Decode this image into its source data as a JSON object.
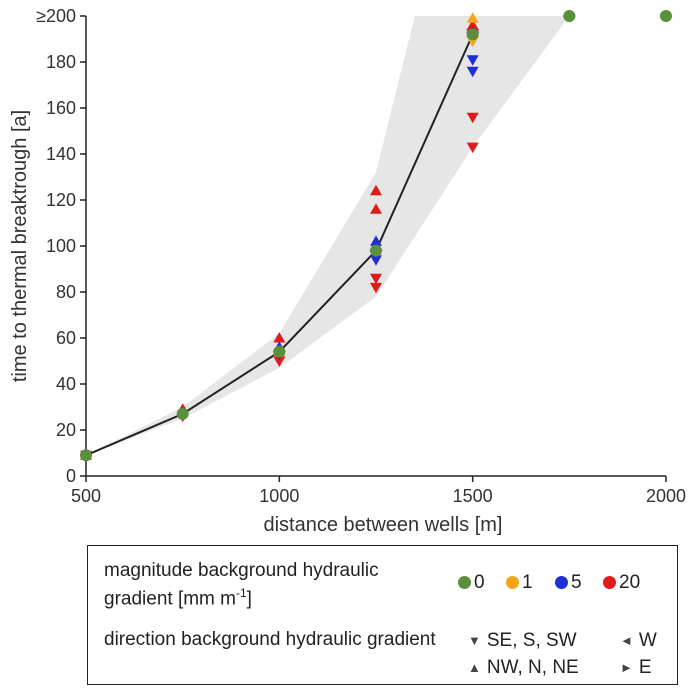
{
  "chart_data": {
    "type": "scatter",
    "xlabel": "distance between wells [m]",
    "ylabel": "time to thermal breaktrough [a]",
    "xlim": [
      500,
      2000
    ],
    "ylim": [
      0,
      200
    ],
    "x_ticks": [
      500,
      1000,
      1500,
      2000
    ],
    "x_tick_labels": [
      "500",
      "1000",
      "1500",
      "2000"
    ],
    "y_ticks": [
      0,
      20,
      40,
      60,
      80,
      100,
      120,
      140,
      160,
      180,
      200
    ],
    "y_tick_labels": [
      "0",
      "20",
      "40",
      "60",
      "80",
      "100",
      "120",
      "140",
      "160",
      "180",
      "≥200"
    ],
    "grid": false,
    "envelope": {
      "x": [
        500,
        750,
        1000,
        1250,
        1500,
        1750,
        2000
      ],
      "lower": [
        9,
        25,
        47,
        78,
        143,
        200,
        200
      ],
      "upper": [
        9,
        30,
        62,
        132,
        200,
        200,
        200
      ],
      "upper_cap_x": 1350,
      "color": "#e6e6e6"
    },
    "line": {
      "x": [
        500,
        750,
        1000,
        1250,
        1500
      ],
      "y": [
        9,
        27,
        54,
        98,
        192
      ],
      "color": "#222222"
    },
    "colors": {
      "0": "#5a8f3c",
      "1": "#f4a51c",
      "5": "#1f2fd6",
      "20": "#e01b1b"
    },
    "series": [
      {
        "magnitude": "20",
        "color": "#e01b1b",
        "points": [
          {
            "x": 500,
            "y": 9,
            "dir": "down"
          },
          {
            "x": 500,
            "y": 9,
            "dir": "up"
          },
          {
            "x": 750,
            "y": 26,
            "dir": "down"
          },
          {
            "x": 750,
            "y": 29,
            "dir": "up"
          },
          {
            "x": 1000,
            "y": 50,
            "dir": "down"
          },
          {
            "x": 1000,
            "y": 60,
            "dir": "up"
          },
          {
            "x": 1000,
            "y": 54,
            "dir": "left"
          },
          {
            "x": 1000,
            "y": 54,
            "dir": "right"
          },
          {
            "x": 1250,
            "y": 82,
            "dir": "down"
          },
          {
            "x": 1250,
            "y": 86,
            "dir": "down"
          },
          {
            "x": 1250,
            "y": 116,
            "dir": "up"
          },
          {
            "x": 1250,
            "y": 124,
            "dir": "up"
          },
          {
            "x": 1250,
            "y": 98,
            "dir": "left"
          },
          {
            "x": 1250,
            "y": 98,
            "dir": "right"
          },
          {
            "x": 1500,
            "y": 143,
            "dir": "down"
          },
          {
            "x": 1500,
            "y": 156,
            "dir": "down"
          },
          {
            "x": 1500,
            "y": 196,
            "dir": "up"
          },
          {
            "x": 1500,
            "y": 194,
            "dir": "left"
          },
          {
            "x": 1500,
            "y": 194,
            "dir": "right"
          },
          {
            "x": 1750,
            "y": 200,
            "dir": "left"
          },
          {
            "x": 1750,
            "y": 200,
            "dir": "right"
          },
          {
            "x": 2000,
            "y": 200,
            "dir": "left"
          },
          {
            "x": 2000,
            "y": 200,
            "dir": "right"
          }
        ]
      },
      {
        "magnitude": "5",
        "color": "#1f2fd6",
        "points": [
          {
            "x": 1000,
            "y": 53,
            "dir": "down"
          },
          {
            "x": 1000,
            "y": 56,
            "dir": "up"
          },
          {
            "x": 1250,
            "y": 94,
            "dir": "down"
          },
          {
            "x": 1250,
            "y": 102,
            "dir": "up"
          },
          {
            "x": 1500,
            "y": 176,
            "dir": "down"
          },
          {
            "x": 1500,
            "y": 181,
            "dir": "down"
          },
          {
            "x": 1500,
            "y": 193,
            "dir": "left"
          },
          {
            "x": 1500,
            "y": 193,
            "dir": "right"
          }
        ]
      },
      {
        "magnitude": "1",
        "color": "#f4a51c",
        "points": [
          {
            "x": 1000,
            "y": 54,
            "dir": "up"
          },
          {
            "x": 1500,
            "y": 189,
            "dir": "down"
          },
          {
            "x": 1500,
            "y": 199,
            "dir": "up"
          },
          {
            "x": 1500,
            "y": 191,
            "dir": "left"
          },
          {
            "x": 1500,
            "y": 191,
            "dir": "right"
          }
        ]
      },
      {
        "magnitude": "0",
        "color": "#5a8f3c",
        "points": [
          {
            "x": 500,
            "y": 9,
            "dir": "dot"
          },
          {
            "x": 750,
            "y": 27,
            "dir": "dot"
          },
          {
            "x": 1000,
            "y": 54,
            "dir": "dot"
          },
          {
            "x": 1250,
            "y": 98,
            "dir": "dot"
          },
          {
            "x": 1500,
            "y": 192,
            "dir": "dot"
          },
          {
            "x": 1750,
            "y": 200,
            "dir": "dot"
          },
          {
            "x": 2000,
            "y": 200,
            "dir": "dot"
          }
        ]
      }
    ]
  },
  "legend": {
    "magnitude_title": "magnitude background hydraulic gradient [mm m",
    "magnitude_superscript": "-1",
    "magnitude_close": "]",
    "magnitude_items": [
      {
        "label": "0",
        "color": "#5a8f3c"
      },
      {
        "label": "1",
        "color": "#f4a51c"
      },
      {
        "label": "5",
        "color": "#1f2fd6"
      },
      {
        "label": "20",
        "color": "#e01b1b"
      }
    ],
    "direction_title": "direction background hydraulic gradient",
    "direction_items": [
      {
        "symbol": "▼",
        "label": "SE, S, SW"
      },
      {
        "symbol": "◄",
        "label": "W"
      },
      {
        "symbol": "▲",
        "label": "NW, N, NE"
      },
      {
        "symbol": "►",
        "label": "E"
      }
    ]
  }
}
